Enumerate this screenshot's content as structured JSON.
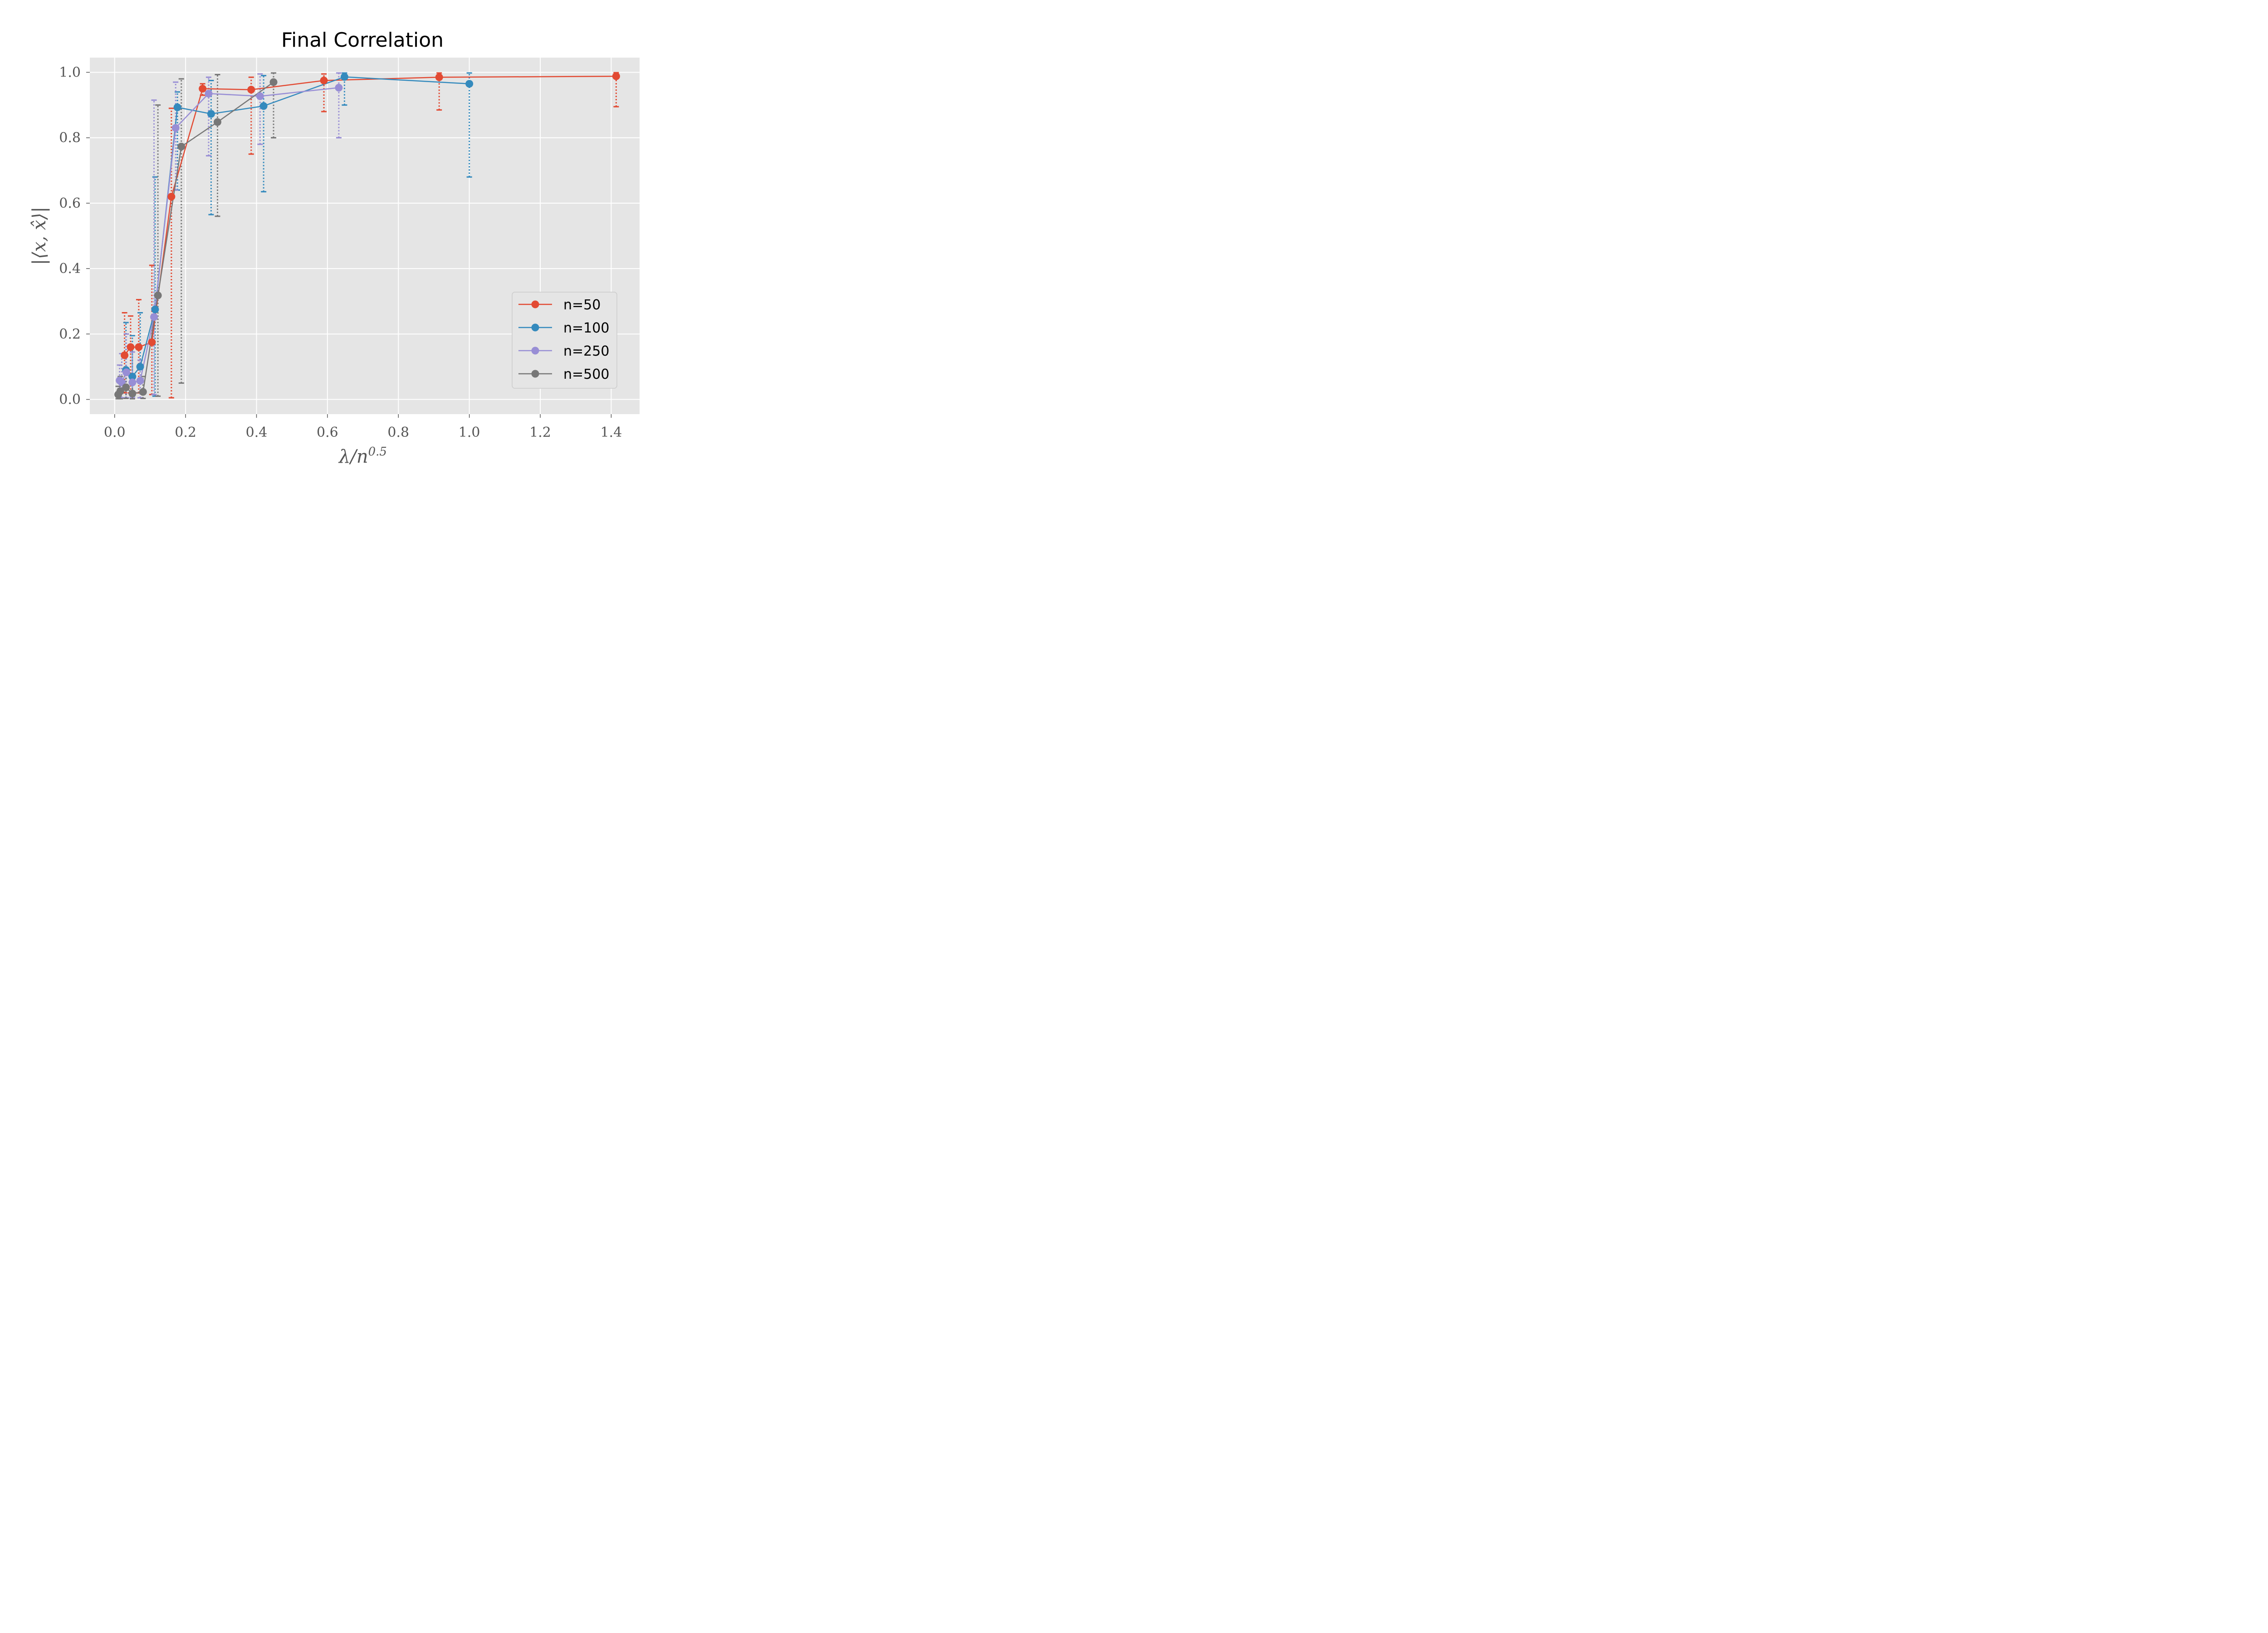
{
  "chart_data": {
    "type": "line",
    "title": "Final Correlation",
    "xlabel": "λ/n",
    "xlabel_exponent": "0.5",
    "ylabel": "|⟨x, x̂⟩|",
    "xlim": [
      -0.07,
      1.48
    ],
    "ylim": [
      -0.045,
      1.045
    ],
    "xticks": [
      0.0,
      0.2,
      0.4,
      0.6,
      0.8,
      1.0,
      1.2,
      1.4
    ],
    "xtick_labels": [
      "0.0",
      "0.2",
      "0.4",
      "0.6",
      "0.8",
      "1.0",
      "1.2",
      "1.4"
    ],
    "yticks": [
      0.0,
      0.2,
      0.4,
      0.6,
      0.8,
      1.0
    ],
    "ytick_labels": [
      "0.0",
      "0.2",
      "0.4",
      "0.6",
      "0.8",
      "1.0"
    ],
    "grid": true,
    "legend_position": "lower-right",
    "error_bars": "dotted",
    "series": [
      {
        "name": "n=50",
        "color": "#e24a33",
        "x": [
          0.028,
          0.045,
          0.068,
          0.105,
          0.16,
          0.248,
          0.385,
          0.59,
          0.915,
          1.414
        ],
        "y": [
          0.135,
          0.16,
          0.16,
          0.175,
          0.62,
          0.95,
          0.947,
          0.975,
          0.985,
          0.988
        ],
        "ylow": [
          0.02,
          0.02,
          0.02,
          0.015,
          0.005,
          0.93,
          0.75,
          0.88,
          0.885,
          0.895
        ],
        "yhigh": [
          0.265,
          0.255,
          0.305,
          0.41,
          0.89,
          0.965,
          0.985,
          0.995,
          0.998,
          0.999
        ]
      },
      {
        "name": "n=100",
        "color": "#348abd",
        "x": [
          0.032,
          0.05,
          0.072,
          0.114,
          0.177,
          0.272,
          0.42,
          0.648,
          1.0
        ],
        "y": [
          0.09,
          0.07,
          0.1,
          0.275,
          0.893,
          0.873,
          0.897,
          0.986,
          0.965
        ],
        "ylow": [
          0.005,
          0.01,
          0.005,
          0.01,
          0.64,
          0.565,
          0.635,
          0.9,
          0.68
        ],
        "yhigh": [
          0.235,
          0.195,
          0.265,
          0.68,
          0.94,
          0.975,
          0.99,
          0.998,
          0.998
        ]
      },
      {
        "name": "n=250",
        "color": "#988ed5",
        "x": [
          0.014,
          0.02,
          0.033,
          0.05,
          0.072,
          0.111,
          0.172,
          0.265,
          0.41,
          0.632
        ],
        "y": [
          0.058,
          0.052,
          0.083,
          0.052,
          0.057,
          0.252,
          0.83,
          0.935,
          0.927,
          0.953
        ],
        "ylow": [
          0.005,
          0.005,
          0.005,
          0.005,
          0.005,
          0.015,
          0.64,
          0.745,
          0.78,
          0.8
        ],
        "yhigh": [
          0.105,
          0.14,
          0.2,
          0.145,
          0.12,
          0.915,
          0.97,
          0.985,
          0.995,
          0.998
        ]
      },
      {
        "name": "n=500",
        "color": "#777777",
        "x": [
          0.01,
          0.016,
          0.032,
          0.05,
          0.08,
          0.122,
          0.188,
          0.29,
          0.448
        ],
        "y": [
          0.015,
          0.025,
          0.037,
          0.018,
          0.023,
          0.318,
          0.773,
          0.848,
          0.97
        ],
        "ylow": [
          0.002,
          0.002,
          0.003,
          0.002,
          0.003,
          0.01,
          0.05,
          0.56,
          0.8
        ],
        "yhigh": [
          0.04,
          0.07,
          0.095,
          0.06,
          0.07,
          0.9,
          0.98,
          0.993,
          0.998
        ]
      }
    ]
  }
}
